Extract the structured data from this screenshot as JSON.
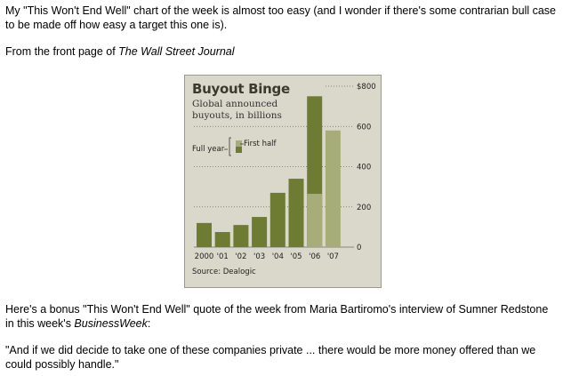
{
  "text": {
    "p1": "My \"This Won't End Well\" chart of the week is almost too easy (and I wonder if there's some contrarian bull case to be made off how easy a target this one is).",
    "p2_prefix": "From the front page of ",
    "p2_source": "The Wall Street Journal",
    "p3_prefix": "Here's a bonus \"This Won't End Well\" quote of the week from Maria Bartiromo's interview of Sumner Redstone in this week's ",
    "p3_source": "BusinessWeek",
    "p3_suffix": ":",
    "p4": "\"And if we did decide to take one of these companies private ... there would be more money offered than we could possibly handle.\""
  },
  "chart_data": {
    "type": "bar",
    "title": "Buyout Binge",
    "subtitle": "Global announced buyouts, in billions",
    "source": "Source: Dealogic",
    "legend": {
      "full_year": "Full year",
      "first_half": "First half"
    },
    "categories": [
      "2000",
      "'01",
      "'02",
      "'03",
      "'04",
      "'05",
      "'06",
      "'07"
    ],
    "series": [
      {
        "name": "Full year",
        "values": [
          120,
          75,
          110,
          150,
          270,
          340,
          750,
          null
        ]
      },
      {
        "name": "First half",
        "values": [
          null,
          null,
          null,
          null,
          null,
          null,
          265,
          580
        ]
      }
    ],
    "ylim": [
      0,
      800
    ],
    "yticks": [
      0,
      200,
      400,
      600,
      800
    ],
    "ytick_labels": [
      "0",
      "200",
      "400",
      "600",
      "$800"
    ],
    "grid": "dotted",
    "colors": {
      "full_year": "#6e7c33",
      "first_half": "#a7ad79",
      "background": "#d9d8cb"
    }
  }
}
